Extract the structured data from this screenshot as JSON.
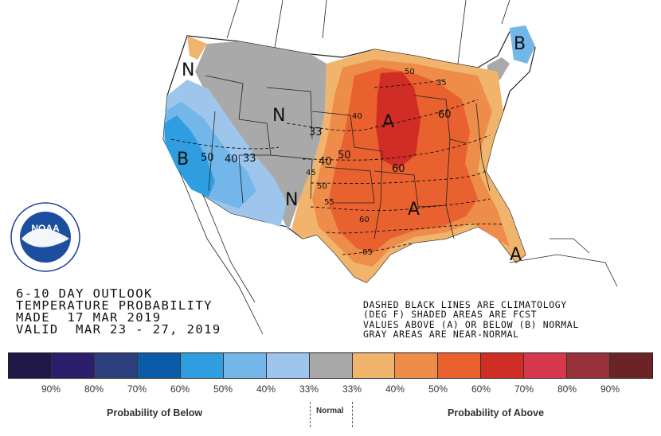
{
  "outlook": {
    "line1": "6-10 DAY OUTLOOK",
    "line2": "TEMPERATURE PROBABILITY",
    "line3": "MADE  17 MAR 2019",
    "line4": "VALID  MAR 23 - 27, 2019"
  },
  "notes": {
    "line1": "DASHED BLACK LINES ARE CLIMATOLOGY",
    "line2": "(DEG F) SHADED AREAS ARE FCST",
    "line3": "VALUES ABOVE (A) OR BELOW (B) NORMAL",
    "line4": "GRAY AREAS ARE NEAR-NORMAL"
  },
  "logo": {
    "text": "NOAA"
  },
  "map": {
    "category_labels": [
      {
        "text": "N"
      },
      {
        "text": "N"
      },
      {
        "text": "N"
      },
      {
        "text": "B"
      },
      {
        "text": "B"
      },
      {
        "text": "A"
      },
      {
        "text": "A"
      },
      {
        "text": "A"
      }
    ],
    "contour_labels": [
      {
        "text": "50"
      },
      {
        "text": "40"
      },
      {
        "text": "33"
      },
      {
        "text": "33"
      },
      {
        "text": "40"
      },
      {
        "text": "50"
      },
      {
        "text": "40"
      },
      {
        "text": "45"
      },
      {
        "text": "50"
      },
      {
        "text": "55"
      },
      {
        "text": "60"
      },
      {
        "text": "60"
      },
      {
        "text": "65"
      },
      {
        "text": "50"
      },
      {
        "text": "60"
      },
      {
        "text": "35"
      }
    ]
  },
  "legend": {
    "colors": [
      "#1f1848",
      "#2b1f6b",
      "#2e3f7e",
      "#0b5ba8",
      "#2f9ee0",
      "#72b6ea",
      "#9ec6ec",
      "#a9a9a9",
      "#f0b46c",
      "#ee8c49",
      "#e8612f",
      "#cf2d26",
      "#d6374d",
      "#963039",
      "#6b2326"
    ],
    "percent_labels": [
      "90%",
      "80%",
      "70%",
      "60%",
      "50%",
      "40%",
      "33%",
      "33%",
      "40%",
      "50%",
      "60%",
      "70%",
      "80%",
      "90%"
    ],
    "below_caption": "Probability of Below",
    "normal_caption": "Normal",
    "above_caption": "Probability of Above"
  }
}
